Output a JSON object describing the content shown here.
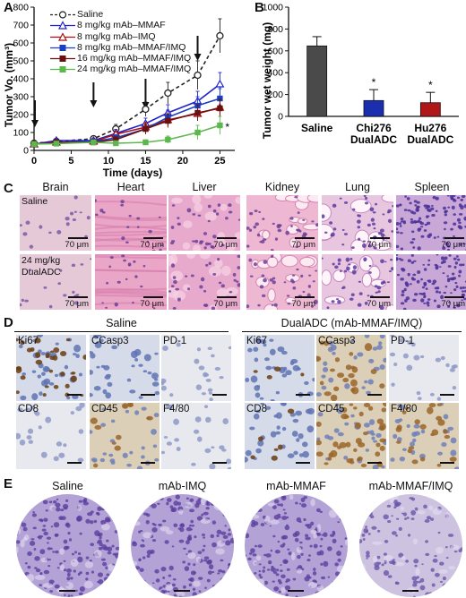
{
  "panel_labels": {
    "a": "A",
    "b": "B",
    "c": "C",
    "d": "D",
    "e": "E"
  },
  "chart_data": [
    {
      "type": "line",
      "ylabel": "Tumor Vo. (mm³)",
      "xlabel": "Time (days)",
      "x": [
        0,
        3,
        8,
        11,
        15,
        18,
        22,
        25
      ],
      "xticks": [
        "0",
        "5",
        "10",
        "15",
        "20",
        "25"
      ],
      "yticks": [
        "0",
        "100",
        "200",
        "300",
        "400",
        "500",
        "600",
        "700",
        "800"
      ],
      "xlim": [
        0,
        27
      ],
      "ylim": [
        0,
        800
      ],
      "annotation": "*",
      "arrows_at": [
        0,
        8,
        15,
        22
      ],
      "series": [
        {
          "name": "Saline",
          "color": "#222222",
          "marker": "open-circle",
          "dashed": true,
          "values": [
            40,
            50,
            65,
            120,
            230,
            320,
            420,
            640
          ]
        },
        {
          "name": "8 mg/kg mAb–MMAF",
          "color": "#2222cc",
          "marker": "open-triangle",
          "values": [
            35,
            55,
            55,
            95,
            150,
            210,
            275,
            370
          ]
        },
        {
          "name": "8 mg/kg mAb–IMQ",
          "color": "#aa1111",
          "marker": "open-triangle",
          "values": [
            35,
            45,
            50,
            90,
            130,
            170,
            205,
            240
          ]
        },
        {
          "name": "8 mg/kg mAb–MMAF/IMQ",
          "color": "#1a3fc4",
          "marker": "filled-square",
          "values": [
            35,
            45,
            50,
            70,
            120,
            185,
            250,
            290
          ]
        },
        {
          "name": "16 mg/kg mAb–MMAF/IMQ",
          "color": "#6b1010",
          "marker": "filled-square",
          "values": [
            35,
            45,
            45,
            60,
            120,
            165,
            210,
            235
          ]
        },
        {
          "name": "24 mg/kg mAb–MMAF/IMQ",
          "color": "#5bb84a",
          "marker": "filled-square",
          "values": [
            35,
            38,
            45,
            40,
            45,
            60,
            100,
            140
          ]
        }
      ]
    },
    {
      "type": "bar",
      "ylabel": "Tumor wet weight (mg)",
      "yticks": [
        "0",
        "200",
        "400",
        "600",
        "800",
        "1000"
      ],
      "ylim": [
        0,
        1000
      ],
      "categories": [
        "Saline",
        "Chi276\nDualADC",
        "Hu276\nDualADC"
      ],
      "category_lines": [
        [
          "Saline"
        ],
        [
          "Chi276",
          "DualADC"
        ],
        [
          "Hu276",
          "DualADC"
        ]
      ],
      "values": [
        645,
        145,
        125
      ],
      "errors": [
        85,
        100,
        95
      ],
      "colors": [
        "#4a4a4a",
        "#1a2fb0",
        "#b01818"
      ],
      "significance": [
        "",
        "*",
        "*"
      ]
    }
  ],
  "panel_c": {
    "columns": [
      "Brain",
      "Heart",
      "Liver",
      "Kidney",
      "Lung",
      "Spleen"
    ],
    "row_labels": [
      [
        "Saline"
      ],
      [
        "24 mg/kg",
        "DualADC"
      ]
    ],
    "scale_label": "70 μm"
  },
  "panel_d": {
    "groups": [
      "Saline",
      "DualADC (mAb-MMAF/IMQ)"
    ],
    "stains": [
      [
        "Ki67",
        "CCasp3",
        "PD-1"
      ],
      [
        "CD8",
        "CD45",
        "F4/80"
      ]
    ]
  },
  "panel_e": {
    "columns": [
      "Saline",
      "mAb-IMQ",
      "mAb-MMAF",
      "mAb-MMAF/IMQ"
    ]
  },
  "colors": {
    "he_pink": "#e8a8c8",
    "ihc_blue": "#8a9ccc",
    "dab_brown": "#8a5a22",
    "tma_purple": "#9a86c8"
  }
}
